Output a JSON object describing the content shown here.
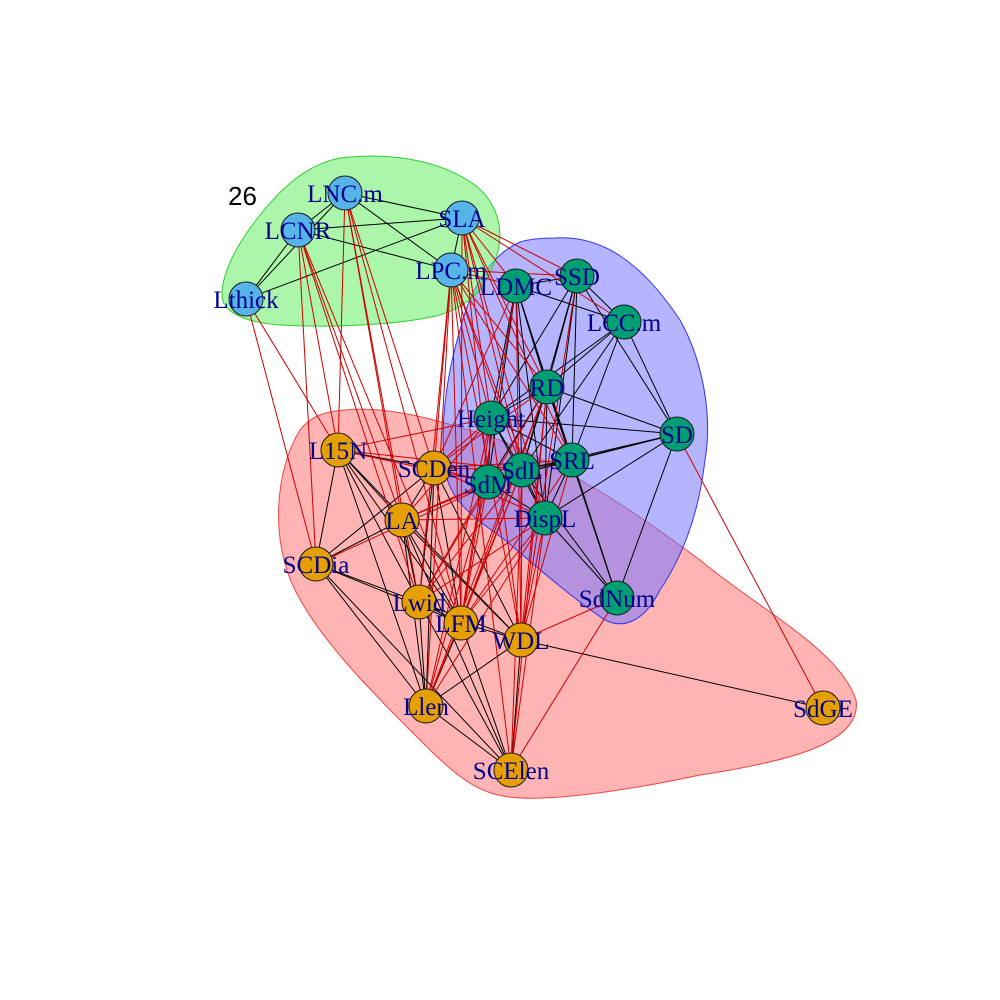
{
  "panel_label": "26",
  "colors": {
    "background": "#ffffff",
    "label": "#00008B",
    "edge_within": "#000000",
    "edge_between": "#cc0000",
    "groups": {
      "leaf_econ": {
        "node": "#56B4E9",
        "hull_fill": "#66ee66",
        "hull_stroke": "#33cc33"
      },
      "seed": {
        "node": "#009E73",
        "hull_fill": "#7777ff",
        "hull_stroke": "#3333ee"
      },
      "size": {
        "node": "#E69F00",
        "hull_fill": "#ff7777",
        "hull_stroke": "#ee4444"
      }
    }
  },
  "nodes": [
    {
      "id": "LNC.m",
      "label": "LNC.m",
      "group": "leaf_econ"
    },
    {
      "id": "LCNR",
      "label": "LCNR",
      "group": "leaf_econ"
    },
    {
      "id": "SLA",
      "label": "SLA",
      "group": "leaf_econ"
    },
    {
      "id": "LPC.m",
      "label": "LPC.m",
      "group": "leaf_econ"
    },
    {
      "id": "Lthick",
      "label": "Lthick",
      "group": "leaf_econ"
    },
    {
      "id": "LDMC",
      "label": "LDMC",
      "group": "seed"
    },
    {
      "id": "SSD",
      "label": "SSD",
      "group": "seed"
    },
    {
      "id": "LCC.m",
      "label": "LCC.m",
      "group": "seed"
    },
    {
      "id": "RD",
      "label": "RD",
      "group": "seed"
    },
    {
      "id": "Height",
      "label": "Height",
      "group": "seed"
    },
    {
      "id": "SD",
      "label": "SD",
      "group": "seed"
    },
    {
      "id": "SdM",
      "label": "SdM",
      "group": "seed"
    },
    {
      "id": "SdL",
      "label": "SdL",
      "group": "seed"
    },
    {
      "id": "SRL",
      "label": "SRL",
      "group": "seed"
    },
    {
      "id": "DispL",
      "label": "DispL",
      "group": "seed"
    },
    {
      "id": "SdNum",
      "label": "SdNum",
      "group": "seed"
    },
    {
      "id": "L15N",
      "label": "L15N",
      "group": "size"
    },
    {
      "id": "SCDen",
      "label": "SCDen",
      "group": "size"
    },
    {
      "id": "LA",
      "label": "LA",
      "group": "size"
    },
    {
      "id": "SCDia",
      "label": "SCDia",
      "group": "size"
    },
    {
      "id": "Lwid",
      "label": "Lwid",
      "group": "size"
    },
    {
      "id": "LFM",
      "label": "LFM",
      "group": "size"
    },
    {
      "id": "WDL",
      "label": "WDL",
      "group": "size"
    },
    {
      "id": "Llen",
      "label": "Llen",
      "group": "size"
    },
    {
      "id": "SdGE",
      "label": "SdGE",
      "group": "size"
    },
    {
      "id": "SCElen",
      "label": "SCElen",
      "group": "size"
    }
  ],
  "edges": [
    [
      "LNC.m",
      "LCNR"
    ],
    [
      "LNC.m",
      "SLA"
    ],
    [
      "LNC.m",
      "LPC.m"
    ],
    [
      "LCNR",
      "SLA"
    ],
    [
      "LCNR",
      "LPC.m"
    ],
    [
      "LCNR",
      "Lthick"
    ],
    [
      "SLA",
      "LPC.m"
    ],
    [
      "SLA",
      "Lthick"
    ],
    [
      "LNC.m",
      "Lthick"
    ],
    [
      "LDMC",
      "SSD"
    ],
    [
      "LDMC",
      "LCC.m"
    ],
    [
      "LDMC",
      "RD"
    ],
    [
      "LDMC",
      "Height"
    ],
    [
      "LDMC",
      "SdL"
    ],
    [
      "LDMC",
      "SRL"
    ],
    [
      "LDMC",
      "DispL"
    ],
    [
      "LDMC",
      "SdM"
    ],
    [
      "LDMC",
      "SdNum"
    ],
    [
      "SSD",
      "LCC.m"
    ],
    [
      "SSD",
      "RD"
    ],
    [
      "SSD",
      "SRL"
    ],
    [
      "SSD",
      "SdL"
    ],
    [
      "SSD",
      "Height"
    ],
    [
      "SSD",
      "DispL"
    ],
    [
      "SSD",
      "SD"
    ],
    [
      "LCC.m",
      "SD"
    ],
    [
      "LCC.m",
      "RD"
    ],
    [
      "LCC.m",
      "SRL"
    ],
    [
      "LCC.m",
      "SdL"
    ],
    [
      "LCC.m",
      "Height"
    ],
    [
      "RD",
      "Height"
    ],
    [
      "RD",
      "SdL"
    ],
    [
      "RD",
      "SRL"
    ],
    [
      "RD",
      "DispL"
    ],
    [
      "RD",
      "SdM"
    ],
    [
      "RD",
      "SD"
    ],
    [
      "RD",
      "SdNum"
    ],
    [
      "Height",
      "SdM"
    ],
    [
      "Height",
      "SdL"
    ],
    [
      "Height",
      "SRL"
    ],
    [
      "Height",
      "DispL"
    ],
    [
      "Height",
      "SD"
    ],
    [
      "SD",
      "SRL"
    ],
    [
      "SD",
      "SdL"
    ],
    [
      "SD",
      "SdM"
    ],
    [
      "SD",
      "DispL"
    ],
    [
      "SD",
      "SdNum"
    ],
    [
      "SdM",
      "SdL"
    ],
    [
      "SdM",
      "SRL"
    ],
    [
      "SdM",
      "DispL"
    ],
    [
      "SdL",
      "SRL"
    ],
    [
      "SdL",
      "DispL"
    ],
    [
      "SRL",
      "DispL"
    ],
    [
      "SRL",
      "SdNum"
    ],
    [
      "DispL",
      "SdNum"
    ],
    [
      "SdL",
      "SdNum"
    ],
    [
      "L15N",
      "SCDen"
    ],
    [
      "L15N",
      "LA"
    ],
    [
      "L15N",
      "SCDia"
    ],
    [
      "L15N",
      "Lwid"
    ],
    [
      "L15N",
      "LFM"
    ],
    [
      "L15N",
      "WDL"
    ],
    [
      "L15N",
      "Llen"
    ],
    [
      "SCDen",
      "LA"
    ],
    [
      "SCDen",
      "Lwid"
    ],
    [
      "SCDen",
      "LFM"
    ],
    [
      "SCDen",
      "WDL"
    ],
    [
      "SCDen",
      "Llen"
    ],
    [
      "SCDen",
      "SCDia"
    ],
    [
      "LA",
      "SCDia"
    ],
    [
      "LA",
      "Lwid"
    ],
    [
      "LA",
      "LFM"
    ],
    [
      "LA",
      "WDL"
    ],
    [
      "LA",
      "Llen"
    ],
    [
      "LA",
      "SCElen"
    ],
    [
      "SCDia",
      "Lwid"
    ],
    [
      "SCDia",
      "LFM"
    ],
    [
      "SCDia",
      "Llen"
    ],
    [
      "SCDia",
      "SCElen"
    ],
    [
      "Lwid",
      "LFM"
    ],
    [
      "Lwid",
      "WDL"
    ],
    [
      "Lwid",
      "Llen"
    ],
    [
      "Lwid",
      "SCElen"
    ],
    [
      "LFM",
      "WDL"
    ],
    [
      "LFM",
      "Llen"
    ],
    [
      "LFM",
      "SCElen"
    ],
    [
      "WDL",
      "Llen"
    ],
    [
      "WDL",
      "SCElen"
    ],
    [
      "WDL",
      "SdGE"
    ],
    [
      "Llen",
      "SCElen"
    ],
    [
      "LNC.m",
      "L15N"
    ],
    [
      "LNC.m",
      "LA"
    ],
    [
      "LNC.m",
      "Lwid"
    ],
    [
      "LNC.m",
      "SCDen"
    ],
    [
      "LNC.m",
      "LFM"
    ],
    [
      "LCNR",
      "L15N"
    ],
    [
      "LCNR",
      "LA"
    ],
    [
      "LCNR",
      "SCDia"
    ],
    [
      "LCNR",
      "Lwid"
    ],
    [
      "LCNR",
      "LFM"
    ],
    [
      "Lthick",
      "SCDia"
    ],
    [
      "Lthick",
      "L15N"
    ],
    [
      "SLA",
      "LDMC"
    ],
    [
      "SLA",
      "SSD"
    ],
    [
      "SLA",
      "LCC.m"
    ],
    [
      "SLA",
      "RD"
    ],
    [
      "SLA",
      "Height"
    ],
    [
      "SLA",
      "SdL"
    ],
    [
      "SLA",
      "SRL"
    ],
    [
      "SLA",
      "DispL"
    ],
    [
      "SLA",
      "SdM"
    ],
    [
      "SLA",
      "LFM"
    ],
    [
      "LPC.m",
      "LDMC"
    ],
    [
      "LPC.m",
      "SSD"
    ],
    [
      "LPC.m",
      "RD"
    ],
    [
      "LPC.m",
      "Height"
    ],
    [
      "LPC.m",
      "SRL"
    ],
    [
      "LPC.m",
      "SdL"
    ],
    [
      "LPC.m",
      "DispL"
    ],
    [
      "LPC.m",
      "SCDen"
    ],
    [
      "LPC.m",
      "Lwid"
    ],
    [
      "LPC.m",
      "LFM"
    ],
    [
      "LPC.m",
      "WDL"
    ],
    [
      "LPC.m",
      "Llen"
    ],
    [
      "LPC.m",
      "SCElen"
    ],
    [
      "SCDen",
      "Height"
    ],
    [
      "SCDen",
      "SdM"
    ],
    [
      "SCDen",
      "SdL"
    ],
    [
      "SCDen",
      "SRL"
    ],
    [
      "SCDen",
      "DispL"
    ],
    [
      "SCDen",
      "RD"
    ],
    [
      "SCDen",
      "LDMC"
    ],
    [
      "LA",
      "SdM"
    ],
    [
      "LA",
      "SdL"
    ],
    [
      "LA",
      "DispL"
    ],
    [
      "LA",
      "Height"
    ],
    [
      "L15N",
      "SdM"
    ],
    [
      "L15N",
      "SdL"
    ],
    [
      "L15N",
      "Height"
    ],
    [
      "Lwid",
      "SdM"
    ],
    [
      "Lwid",
      "SdL"
    ],
    [
      "Lwid",
      "DispL"
    ],
    [
      "Lwid",
      "RD"
    ],
    [
      "LFM",
      "Height"
    ],
    [
      "LFM",
      "SdM"
    ],
    [
      "LFM",
      "SdL"
    ],
    [
      "LFM",
      "SRL"
    ],
    [
      "LFM",
      "DispL"
    ],
    [
      "LFM",
      "RD"
    ],
    [
      "LFM",
      "LDMC"
    ],
    [
      "WDL",
      "Height"
    ],
    [
      "WDL",
      "SdL"
    ],
    [
      "WDL",
      "SRL"
    ],
    [
      "WDL",
      "DispL"
    ],
    [
      "WDL",
      "RD"
    ],
    [
      "WDL",
      "LDMC"
    ],
    [
      "WDL",
      "SSD"
    ],
    [
      "WDL",
      "SdNum"
    ],
    [
      "Llen",
      "SdM"
    ],
    [
      "Llen",
      "SdL"
    ],
    [
      "Llen",
      "DispL"
    ],
    [
      "Llen",
      "RD"
    ],
    [
      "Llen",
      "Height"
    ],
    [
      "SCElen",
      "SdL"
    ],
    [
      "SCElen",
      "DispL"
    ],
    [
      "SCElen",
      "RD"
    ],
    [
      "SCElen",
      "SdNum"
    ],
    [
      "SdGE",
      "SD"
    ],
    [
      "SCDia",
      "SdL"
    ]
  ]
}
